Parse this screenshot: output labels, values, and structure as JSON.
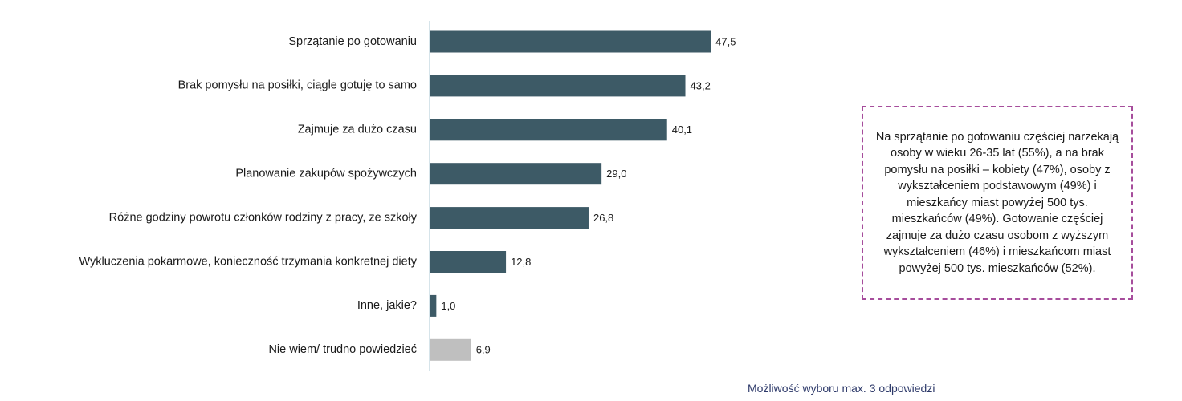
{
  "chart_data": {
    "type": "bar",
    "orientation": "horizontal",
    "categories": [
      "Sprzątanie po gotowaniu",
      "Brak pomysłu na posiłki, ciągle gotuję to samo",
      "Zajmuje za dużo czasu",
      "Planowanie zakupów spożywczych",
      "Różne godziny powrotu członków rodziny z pracy, ze szkoły",
      "Wykluczenia pokarmowe, konieczność trzymania konkretnej diety",
      "Inne, jakie?",
      "Nie wiem/ trudno powiedzieć"
    ],
    "values": [
      47.5,
      43.2,
      40.1,
      29.0,
      26.8,
      12.8,
      1.0,
      6.9
    ],
    "value_labels": [
      "47,5",
      "43,2",
      "40,1",
      "29,0",
      "26,8",
      "12,8",
      "1,0",
      "6,9"
    ],
    "bar_colors": [
      "#3d5a66",
      "#3d5a66",
      "#3d5a66",
      "#3d5a66",
      "#3d5a66",
      "#3d5a66",
      "#3d5a66",
      "#bfbfbf"
    ],
    "xlim": [
      0,
      100
    ],
    "grid": false,
    "legend": "none"
  },
  "annotation": {
    "text": "Na sprzątanie po gotowaniu częściej narzekają osoby w wieku 26-35 lat (55%), a na brak pomysłu na posiłki – kobiety (47%), osoby z wykształceniem podstawowym (49%) i mieszkańcy miast powyżej 500 tys. mieszkańców (49%). Gotowanie częściej zajmuje za dużo czasu osobom z wyższym wykształceniem (46%) i mieszkańcom miast powyżej 500 tys. mieszkańców (52%).",
    "border_color": "#a64d9c"
  },
  "footnote": "Możliwość wyboru max. 3 odpowiedzi",
  "colors": {
    "axis": "#c9dbe3",
    "text": "#1a1a1a",
    "footnote": "#2e3a6a"
  }
}
